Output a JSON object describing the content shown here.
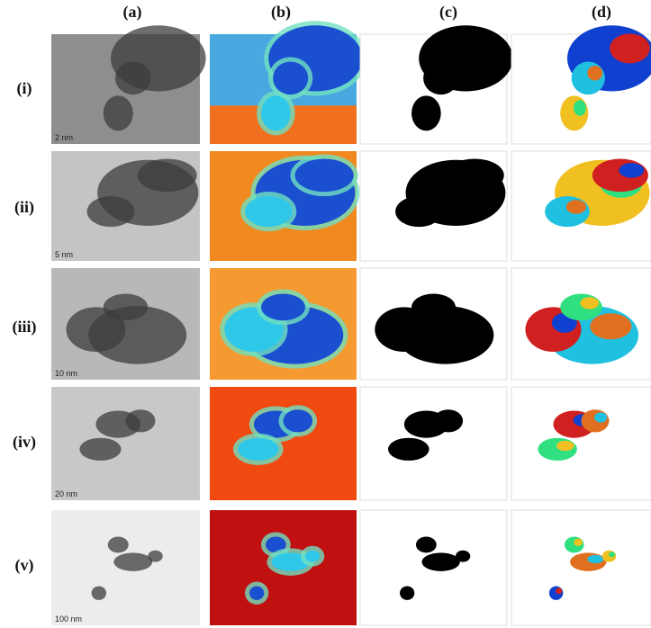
{
  "columns": [
    "(a)",
    "(b)",
    "(c)",
    "(d)"
  ],
  "rows": [
    "(i)",
    "(ii)",
    "(iii)",
    "(iv)",
    "(v)"
  ],
  "scale_bars": [
    "2 nm",
    "5 nm",
    "10 nm",
    "20 nm",
    "100 nm"
  ]
}
